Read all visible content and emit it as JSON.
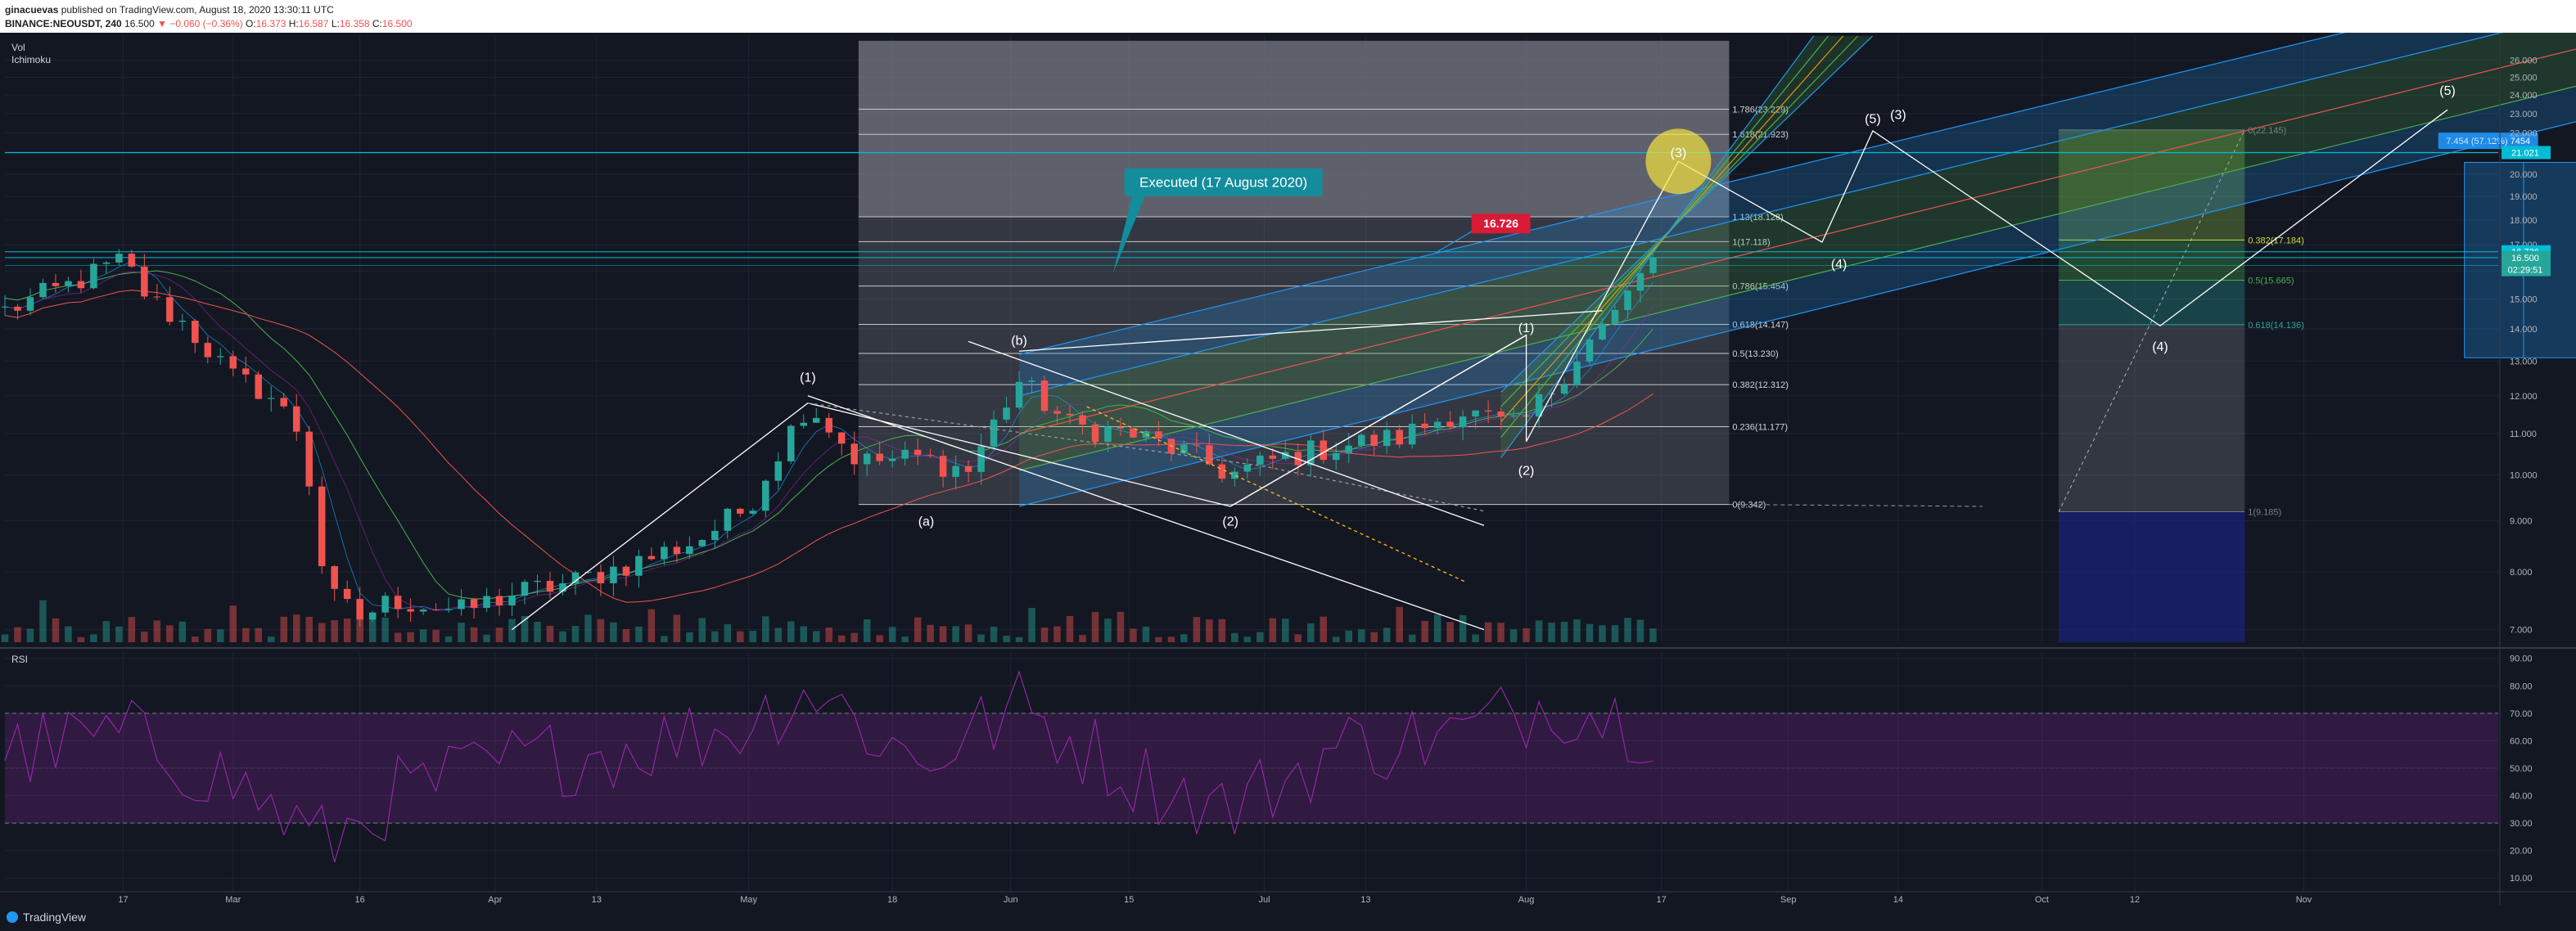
{
  "header": {
    "author": "ginacuevas",
    "published": " published on TradingView.com, August 18, 2020 13:30:11 UTC",
    "symbol": "BINANCE:NEOUSDT, 240",
    "last": "16.500",
    "change": "▼ −0.060 (−0.36%)",
    "o": "16.373",
    "h": "16.587",
    "l": "16.358",
    "c": "16.500"
  },
  "footer": {
    "brand": "TradingView"
  },
  "colors": {
    "background": "#131722",
    "up": "#26a69a",
    "down": "#ef5350",
    "rsi": "#9c27b0",
    "fib_box": "#787b86",
    "channel": "#2196f3",
    "highlight": "#ffeb3b",
    "executed_callout": "#138c9b",
    "horizontal_line": "#00bcd4"
  },
  "chart_data": [
    {
      "type": "line",
      "panel": "price",
      "scale": "log",
      "title": "",
      "indicator_labels": [
        "Vol",
        "Ichimoku"
      ],
      "y_ticks": [
        "26.000",
        "25.000",
        "24.000",
        "23.000",
        "22.000",
        "21.000",
        "20.000",
        "19.000",
        "18.000",
        "17.000",
        "16.000",
        "15.000",
        "14.000",
        "13.000",
        "12.000",
        "11.000",
        "10.000",
        "9.000",
        "8.000",
        "7.000"
      ],
      "x_ticks": [
        "17",
        "Mar",
        "16",
        "Apr",
        "13",
        "May",
        "18",
        "Jun",
        "15",
        "Jul",
        "13",
        "Aug",
        "17",
        "Sep",
        "14",
        "Oct",
        "12",
        "Nov"
      ],
      "ylim": [
        6.8,
        27.5
      ],
      "price_tags": [
        {
          "text": "21.021",
          "value": 21.021,
          "color": "#00bcd4"
        },
        {
          "text": "16.726",
          "value": 16.726,
          "color": "#00bcd4"
        },
        {
          "text": "16.500",
          "value": 16.5,
          "color": "#26a69a"
        },
        {
          "text": "02:29:51",
          "value": 16.05,
          "color": "#26a69a"
        }
      ],
      "series": [
        {
          "x": [
            "2020-02-03",
            "2020-02-10",
            "2020-02-17",
            "2020-02-20",
            "2020-02-24",
            "2020-03-01",
            "2020-03-05",
            "2020-03-09",
            "2020-03-12",
            "2020-03-16",
            "2020-03-20",
            "2020-03-28",
            "2020-04-03",
            "2020-04-10",
            "2020-04-18",
            "2020-04-25",
            "2020-05-01",
            "2020-05-08",
            "2020-05-14",
            "2020-05-21",
            "2020-05-27",
            "2020-06-02",
            "2020-06-08",
            "2020-06-15",
            "2020-06-22",
            "2020-06-27",
            "2020-07-03",
            "2020-07-10",
            "2020-07-17",
            "2020-07-24",
            "2020-07-31",
            "2020-08-04",
            "2020-08-08",
            "2020-08-12",
            "2020-08-15",
            "2020-08-17"
          ],
          "values": [
            14.6,
            15.4,
            16.4,
            15.0,
            14.2,
            12.5,
            12.1,
            11.0,
            7.6,
            7.2,
            7.5,
            7.3,
            7.6,
            7.8,
            8.2,
            8.6,
            9.3,
            11.8,
            10.3,
            10.4,
            10.1,
            12.4,
            11.2,
            11.0,
            10.5,
            10.0,
            10.4,
            10.7,
            10.9,
            11.6,
            11.1,
            12.2,
            13.5,
            14.6,
            16.2,
            16.5
          ]
        }
      ],
      "fib_retracement": {
        "levels": [
          {
            "label": "1.786(23.229)",
            "value": 23.229
          },
          {
            "label": "1.618(21.923)",
            "value": 21.923
          },
          {
            "label": "1.13(18.128)",
            "value": 18.128
          },
          {
            "label": "1(17.118)",
            "value": 17.118
          },
          {
            "label": "0.786(15.454)",
            "value": 15.454
          },
          {
            "label": "0.618(14.147)",
            "value": 14.147
          },
          {
            "label": "0.5(13.230)",
            "value": 13.23
          },
          {
            "label": "0.382(12.312)",
            "value": 12.312
          },
          {
            "label": "0.236(11.177)",
            "value": 11.177
          },
          {
            "label": "0(9.342)",
            "value": 9.342
          }
        ]
      },
      "fib_projection": {
        "levels": [
          {
            "label": "0(22.145)",
            "value": 22.145,
            "color": "#787b86"
          },
          {
            "label": "0.382(17.184)",
            "value": 17.184,
            "color": "#cddc39"
          },
          {
            "label": "0.5(15.665)",
            "value": 15.665,
            "color": "#4caf50"
          },
          {
            "label": "0.618(14.136)",
            "value": 14.136,
            "color": "#26a69a"
          },
          {
            "label": "1(9.185)",
            "value": 9.185,
            "color": "#787b86"
          }
        ]
      },
      "annotations": {
        "executed": "Executed (17 August 2020)",
        "price_label": "16.726",
        "measure": "7.454 (57.12%) 7454",
        "waves": [
          {
            "text": "(1)",
            "x": "2020-05-08",
            "y": 12.4
          },
          {
            "text": "(a)",
            "x": "2020-05-22",
            "y": 8.9
          },
          {
            "text": "(b)",
            "x": "2020-06-02",
            "y": 13.5
          },
          {
            "text": "(2)",
            "x": "2020-06-27",
            "y": 8.9
          },
          {
            "text": "(1)",
            "x": "2020-08-01",
            "y": 13.9
          },
          {
            "text": "(2)",
            "x": "2020-08-01",
            "y": 10.0
          },
          {
            "text": "(3)",
            "x": "2020-08-19",
            "y": 20.8
          },
          {
            "text": "(4)",
            "x": "2020-09-07",
            "y": 16.1
          },
          {
            "text": "(5)",
            "x": "2020-09-11",
            "y": 22.5
          },
          {
            "text": "(3)",
            "x": "2020-09-14",
            "y": 22.7
          },
          {
            "text": "(4)",
            "x": "2020-10-15",
            "y": 13.3
          },
          {
            "text": "(5)",
            "x": "2020-11-18",
            "y": 24.0
          }
        ]
      }
    },
    {
      "type": "line",
      "panel": "rsi",
      "indicator_labels": [
        "RSI"
      ],
      "y_ticks": [
        "90.00",
        "80.00",
        "70.00",
        "60.00",
        "50.00",
        "40.00",
        "30.00",
        "20.00",
        "10.00"
      ],
      "ylim": [
        5,
        92
      ],
      "bands": [
        30,
        70
      ],
      "series": [
        {
          "x": [
            "2020-02-03",
            "2020-02-17",
            "2020-03-01",
            "2020-03-12",
            "2020-03-20",
            "2020-04-03",
            "2020-04-18",
            "2020-05-01",
            "2020-05-08",
            "2020-05-21",
            "2020-06-02",
            "2020-06-15",
            "2020-06-27",
            "2020-07-10",
            "2020-07-24",
            "2020-08-04",
            "2020-08-12",
            "2020-08-17"
          ],
          "values": [
            55,
            62,
            45,
            22,
            40,
            52,
            58,
            66,
            80,
            52,
            72,
            48,
            35,
            58,
            62,
            75,
            68,
            65
          ]
        }
      ]
    }
  ]
}
